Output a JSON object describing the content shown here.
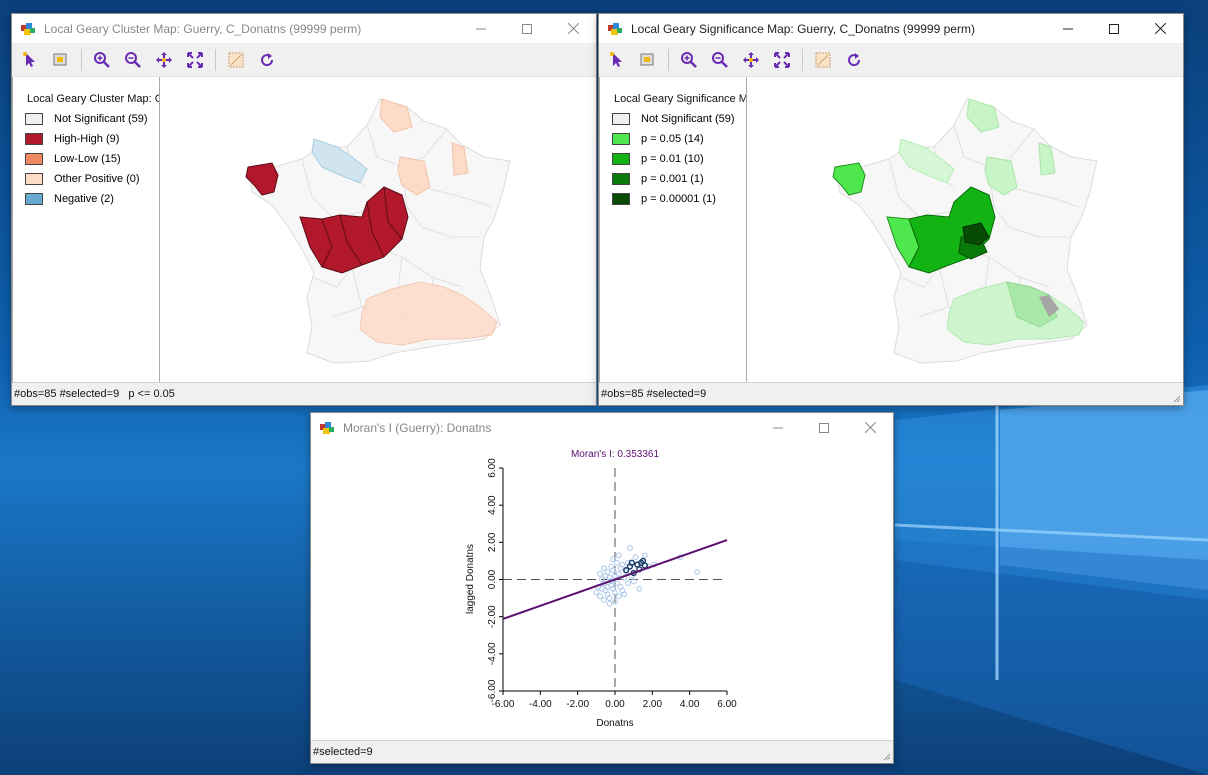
{
  "desktop": {
    "background": "windows-10-blue"
  },
  "cluster_window": {
    "title": "Local Geary Cluster Map: Guerry, C_Donatns (99999 perm)",
    "legend_title": "Local Geary Cluster Map: G",
    "legend": [
      {
        "label": "Not Significant (59)",
        "color": "#f0f0f0"
      },
      {
        "label": "High-High (9)",
        "color": "#b2182b"
      },
      {
        "label": "Low-Low (15)",
        "color": "#ef8a62"
      },
      {
        "label": "Other Positive (0)",
        "color": "#fddbc7"
      },
      {
        "label": "Negative (2)",
        "color": "#67a9cf"
      }
    ],
    "status": "#obs=85 #selected=9   p <= 0.05"
  },
  "significance_window": {
    "title": "Local Geary Significance Map: Guerry, C_Donatns (99999 perm)",
    "legend_title": "Local Geary Significance M",
    "legend": [
      {
        "label": "Not Significant (59)",
        "color": "#f0f0f0"
      },
      {
        "label": "p = 0.05 (14)",
        "color": "#4ee84e"
      },
      {
        "label": "p = 0.01 (10)",
        "color": "#13b313"
      },
      {
        "label": "p = 0.001 (1)",
        "color": "#0a7a0a"
      },
      {
        "label": "p = 0.00001 (1)",
        "color": "#064a06"
      }
    ],
    "status": "#obs=85 #selected=9"
  },
  "moran_window": {
    "title": "Moran's I (Guerry): Donatns",
    "status": "#selected=9"
  },
  "toolbar": {
    "icons": [
      "select-icon",
      "select-by-rect-icon",
      "zoom-in-icon",
      "zoom-out-icon",
      "pan-icon",
      "fit-extent-icon",
      "map-layers-icon",
      "refresh-icon"
    ]
  },
  "chart_data": {
    "type": "scatter",
    "title": "Moran's I: 0.353361",
    "xlabel": "Donatns",
    "ylabel": "lagged Donatns",
    "xlim": [
      -6,
      6
    ],
    "ylim": [
      -6,
      6
    ],
    "xticks": [
      "-6.00",
      "-4.00",
      "-2.00",
      "0.00",
      "2.00",
      "4.00",
      "6.00"
    ],
    "yticks": [
      "-6.00",
      "-4.00",
      "-2.00",
      "0.00",
      "2.00",
      "4.00",
      "6.00"
    ],
    "regression": {
      "slope": 0.353361,
      "intercept": 0
    },
    "selected_points": [
      {
        "x": 0.6,
        "y": 0.5
      },
      {
        "x": 0.9,
        "y": 0.9
      },
      {
        "x": 1.2,
        "y": 0.8
      },
      {
        "x": 1.4,
        "y": 0.9
      },
      {
        "x": 1.5,
        "y": 1.0
      },
      {
        "x": 1.0,
        "y": 0.35
      },
      {
        "x": 1.3,
        "y": 0.55
      },
      {
        "x": 0.8,
        "y": 0.7
      },
      {
        "x": 1.6,
        "y": 0.75
      }
    ],
    "points": [
      {
        "x": -0.2,
        "y": -0.3
      },
      {
        "x": -0.5,
        "y": -0.6
      },
      {
        "x": -0.7,
        "y": -0.5
      },
      {
        "x": -0.3,
        "y": 0.1
      },
      {
        "x": 0.1,
        "y": -0.2
      },
      {
        "x": -0.8,
        "y": -0.9
      },
      {
        "x": -0.6,
        "y": -0.2
      },
      {
        "x": -0.4,
        "y": -0.8
      },
      {
        "x": 0.2,
        "y": 0.3
      },
      {
        "x": -0.1,
        "y": 0.5
      },
      {
        "x": -0.9,
        "y": -0.4
      },
      {
        "x": 0.0,
        "y": -0.7
      },
      {
        "x": 0.3,
        "y": -0.4
      },
      {
        "x": -0.2,
        "y": 0.7
      },
      {
        "x": -0.5,
        "y": 0.2
      },
      {
        "x": 0.5,
        "y": 0.1
      },
      {
        "x": 0.4,
        "y": -0.6
      },
      {
        "x": -1.0,
        "y": -0.7
      },
      {
        "x": -0.7,
        "y": 0.0
      },
      {
        "x": -0.3,
        "y": -1.0
      },
      {
        "x": 0.1,
        "y": 0.9
      },
      {
        "x": -0.4,
        "y": 0.4
      },
      {
        "x": 0.7,
        "y": -0.2
      },
      {
        "x": 0.2,
        "y": -0.9
      },
      {
        "x": -0.6,
        "y": -1.1
      },
      {
        "x": -0.1,
        "y": -0.5
      },
      {
        "x": 0.6,
        "y": 0.4
      },
      {
        "x": 0.9,
        "y": 0.2
      },
      {
        "x": -0.8,
        "y": 0.3
      },
      {
        "x": 0.0,
        "y": 0.2
      },
      {
        "x": 0.3,
        "y": 0.6
      },
      {
        "x": -0.2,
        "y": -0.1
      },
      {
        "x": 0.8,
        "y": 1.7
      },
      {
        "x": 1.1,
        "y": 1.2
      },
      {
        "x": 1.8,
        "y": 0.7
      },
      {
        "x": 2.1,
        "y": 0.8
      },
      {
        "x": 3.5,
        "y": 1.2
      },
      {
        "x": 4.4,
        "y": 0.4
      },
      {
        "x": 1.3,
        "y": -0.5
      },
      {
        "x": -0.3,
        "y": -1.3
      },
      {
        "x": 0.5,
        "y": -0.8
      },
      {
        "x": 1.0,
        "y": -0.1
      },
      {
        "x": -0.1,
        "y": 1.1
      },
      {
        "x": 0.4,
        "y": 0.8
      },
      {
        "x": -0.6,
        "y": 0.6
      },
      {
        "x": 1.6,
        "y": 1.3
      },
      {
        "x": 0.2,
        "y": 1.3
      },
      {
        "x": -0.4,
        "y": -0.4
      },
      {
        "x": 0.7,
        "y": 0.9
      },
      {
        "x": 0.0,
        "y": -1.2
      }
    ]
  }
}
